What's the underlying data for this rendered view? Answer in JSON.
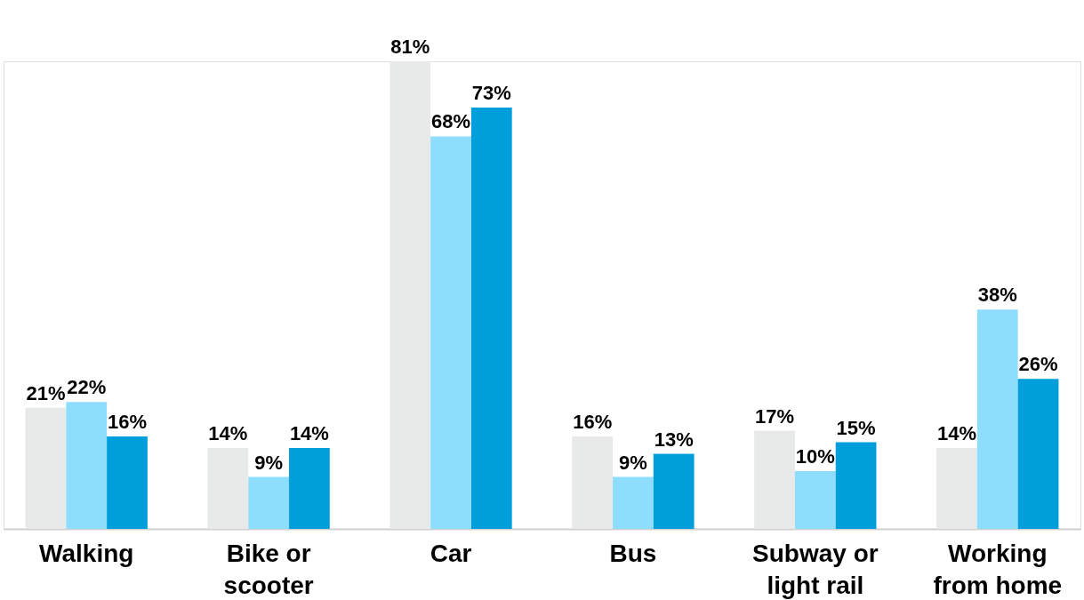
{
  "chart_data": {
    "type": "bar",
    "categories": [
      "Walking",
      "Bike or scooter",
      "Car",
      "Bus",
      "Subway or light rail",
      "Working from home"
    ],
    "series": [
      {
        "color": "#e8e9e9",
        "values": [
          21,
          14,
          81,
          16,
          17,
          14
        ],
        "value_labels": [
          "21%",
          "14%",
          "81%",
          "16%",
          "17%",
          "14%"
        ]
      },
      {
        "color": "#8fddfc",
        "values": [
          22,
          9,
          68,
          9,
          10,
          38
        ],
        "value_labels": [
          "22%",
          "9%",
          "68%",
          "9%",
          "10%",
          "38%"
        ]
      },
      {
        "color": "#009fdb",
        "values": [
          16,
          14,
          73,
          13,
          15,
          26
        ],
        "value_labels": [
          "16%",
          "14%",
          "73%",
          "13%",
          "15%",
          "26%"
        ]
      }
    ],
    "grid": false,
    "legend": false
  }
}
